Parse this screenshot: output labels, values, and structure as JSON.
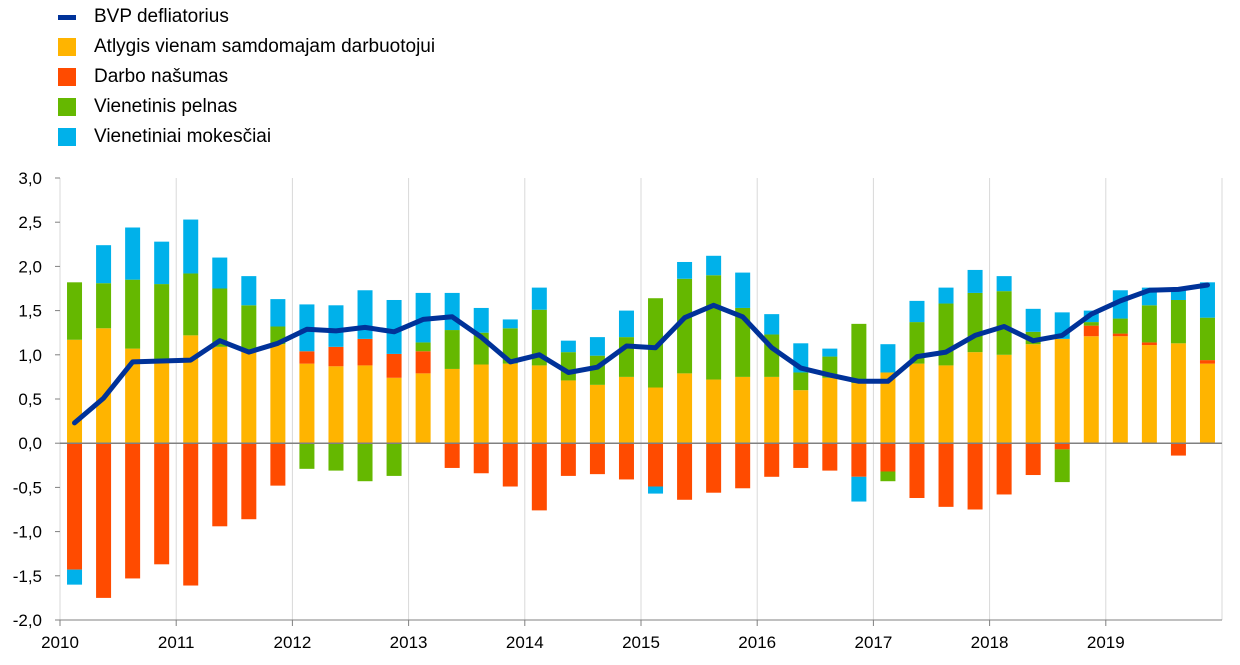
{
  "chart_data": {
    "type": "bar",
    "stacked": true,
    "x_tick_labels": [
      "2010",
      "2011",
      "2012",
      "2013",
      "2014",
      "2015",
      "2016",
      "2017",
      "2018",
      "2019"
    ],
    "quarters": [
      "2010Q1",
      "2010Q2",
      "2010Q3",
      "2010Q4",
      "2011Q1",
      "2011Q2",
      "2011Q3",
      "2011Q4",
      "2012Q1",
      "2012Q2",
      "2012Q3",
      "2012Q4",
      "2013Q1",
      "2013Q2",
      "2013Q3",
      "2013Q4",
      "2014Q1",
      "2014Q2",
      "2014Q3",
      "2014Q4",
      "2015Q1",
      "2015Q2",
      "2015Q3",
      "2015Q4",
      "2016Q1",
      "2016Q2",
      "2016Q3",
      "2016Q4",
      "2017Q1",
      "2017Q2",
      "2017Q3",
      "2017Q4",
      "2018Q1",
      "2018Q2",
      "2018Q3",
      "2018Q4",
      "2019Q1",
      "2019Q2",
      "2019Q3",
      "2019Q4"
    ],
    "ylim": [
      -2.0,
      3.0
    ],
    "y_ticks": [
      -2.0,
      -1.5,
      -1.0,
      -0.5,
      0.0,
      0.5,
      1.0,
      1.5,
      2.0,
      2.5,
      3.0
    ],
    "y_tick_labels": [
      "-2,0",
      "-1,5",
      "-1,0",
      "-0,5",
      "0,0",
      "0,5",
      "1,0",
      "1,5",
      "2,0",
      "2,5",
      "3,0"
    ],
    "grid": "vertical",
    "legend_position": "top-left",
    "series": [
      {
        "name": "Atlygis vienam samdomajam darbuotojui",
        "color": "#ffb400",
        "values": [
          1.17,
          1.3,
          1.07,
          0.92,
          1.22,
          1.09,
          1.04,
          1.12,
          0.9,
          0.87,
          0.88,
          0.74,
          0.79,
          0.84,
          0.89,
          0.9,
          0.88,
          0.71,
          0.66,
          0.75,
          0.63,
          0.79,
          0.72,
          0.75,
          0.75,
          0.6,
          0.74,
          0.68,
          0.8,
          0.9,
          0.88,
          1.03,
          1.0,
          1.12,
          1.18,
          1.21,
          1.21,
          1.11,
          1.13,
          0.9
        ]
      },
      {
        "name": "Darbo našumas",
        "color": "#ff4b00",
        "values": [
          -1.43,
          -1.75,
          -1.53,
          -1.37,
          -1.61,
          -0.94,
          -0.86,
          -0.48,
          0.14,
          0.22,
          0.3,
          0.27,
          0.25,
          -0.28,
          -0.34,
          -0.49,
          -0.76,
          -0.37,
          -0.35,
          -0.41,
          -0.49,
          -0.64,
          -0.56,
          -0.51,
          -0.38,
          -0.28,
          -0.31,
          -0.38,
          -0.32,
          -0.62,
          -0.72,
          -0.75,
          -0.58,
          -0.36,
          -0.07,
          0.12,
          0.03,
          0.03,
          -0.14,
          0.04
        ]
      },
      {
        "name": "Vienetinis pelnas",
        "color": "#65b800",
        "values": [
          0.65,
          0.51,
          0.78,
          0.88,
          0.7,
          0.66,
          0.52,
          0.2,
          -0.29,
          -0.31,
          -0.43,
          -0.37,
          0.1,
          0.44,
          0.36,
          0.4,
          0.63,
          0.32,
          0.33,
          0.45,
          1.01,
          1.07,
          1.18,
          0.78,
          0.48,
          0.2,
          0.24,
          0.67,
          -0.11,
          0.47,
          0.7,
          0.67,
          0.72,
          0.14,
          -0.37,
          0.04,
          0.17,
          0.42,
          0.49,
          0.48
        ]
      },
      {
        "name": "Vienetiniai mokesčiai",
        "color": "#00b1ea",
        "values": [
          -0.17,
          0.43,
          0.59,
          0.48,
          0.61,
          0.35,
          0.33,
          0.31,
          0.53,
          0.47,
          0.55,
          0.61,
          0.56,
          0.42,
          0.28,
          0.1,
          0.25,
          0.13,
          0.21,
          0.3,
          -0.08,
          0.19,
          0.22,
          0.4,
          0.23,
          0.33,
          0.09,
          -0.28,
          0.32,
          0.24,
          0.18,
          0.26,
          0.17,
          0.26,
          0.3,
          0.13,
          0.32,
          0.2,
          0.12,
          0.4
        ]
      }
    ],
    "line": {
      "name": "BVP defliatorius",
      "color": "#003299",
      "values": [
        0.23,
        0.51,
        0.92,
        0.93,
        0.94,
        1.16,
        1.03,
        1.13,
        1.29,
        1.27,
        1.31,
        1.26,
        1.4,
        1.43,
        1.2,
        0.92,
        1.0,
        0.8,
        0.86,
        1.1,
        1.08,
        1.42,
        1.56,
        1.43,
        1.08,
        0.85,
        0.77,
        0.7,
        0.7,
        0.98,
        1.03,
        1.22,
        1.32,
        1.16,
        1.22,
        1.46,
        1.61,
        1.73,
        1.74,
        1.79
      ]
    }
  }
}
